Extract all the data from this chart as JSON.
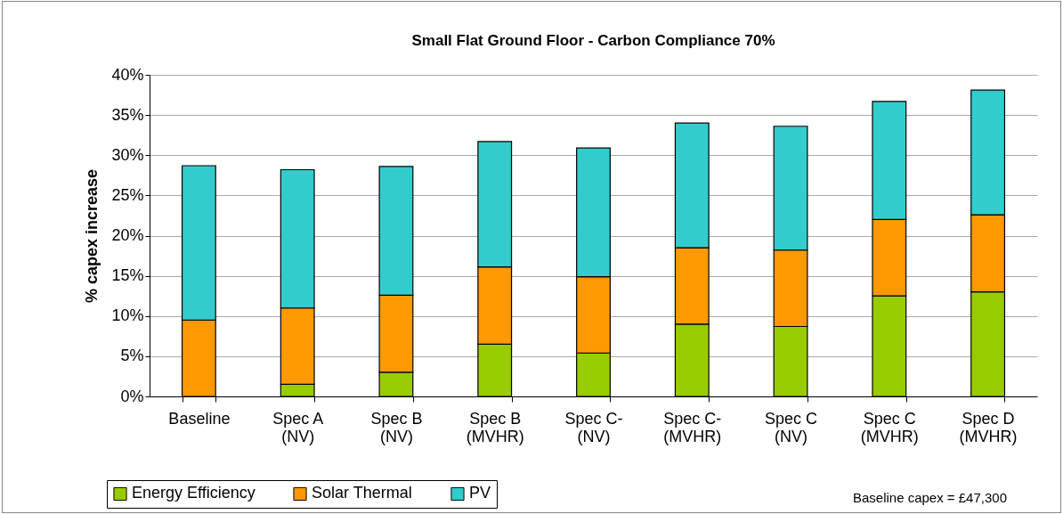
{
  "chart_data": {
    "type": "bar",
    "title": "Small Flat Ground Floor - Carbon Compliance 70%",
    "ylabel": "% capex increase",
    "categories": [
      "Baseline",
      "Spec A\n(NV)",
      "Spec B\n(NV)",
      "Spec B\n(MVHR)",
      "Spec C-\n(NV)",
      "Spec C-\n(MVHR)",
      "Spec C\n(NV)",
      "Spec C\n(MVHR)",
      "Spec D\n(MVHR)"
    ],
    "series": [
      {
        "name": "Energy Efficiency",
        "color": "#99cc00",
        "values": [
          0,
          1.5,
          3.0,
          6.5,
          5.4,
          9.0,
          8.7,
          12.5,
          13.0
        ]
      },
      {
        "name": "Solar Thermal",
        "color": "#ff9900",
        "values": [
          9.5,
          9.5,
          9.6,
          9.6,
          9.5,
          9.5,
          9.5,
          9.5,
          9.6
        ]
      },
      {
        "name": "PV",
        "color": "#33cccc",
        "values": [
          19.2,
          17.2,
          16.0,
          15.6,
          16.0,
          15.5,
          15.4,
          14.7,
          15.5
        ]
      }
    ],
    "stacked": true,
    "ylim": [
      0,
      40
    ],
    "yticks": [
      {
        "value": 0,
        "label": "0%"
      },
      {
        "value": 5,
        "label": "5%"
      },
      {
        "value": 10,
        "label": "10%"
      },
      {
        "value": 15,
        "label": "15%"
      },
      {
        "value": 20,
        "label": "20%"
      },
      {
        "value": 25,
        "label": "25%"
      },
      {
        "value": 30,
        "label": "30%"
      },
      {
        "value": 35,
        "label": "35%"
      },
      {
        "value": 40,
        "label": "40%"
      }
    ],
    "grid": "y",
    "legend": "bottom left",
    "annotations": [
      "Baseline capex = £47,300"
    ]
  }
}
